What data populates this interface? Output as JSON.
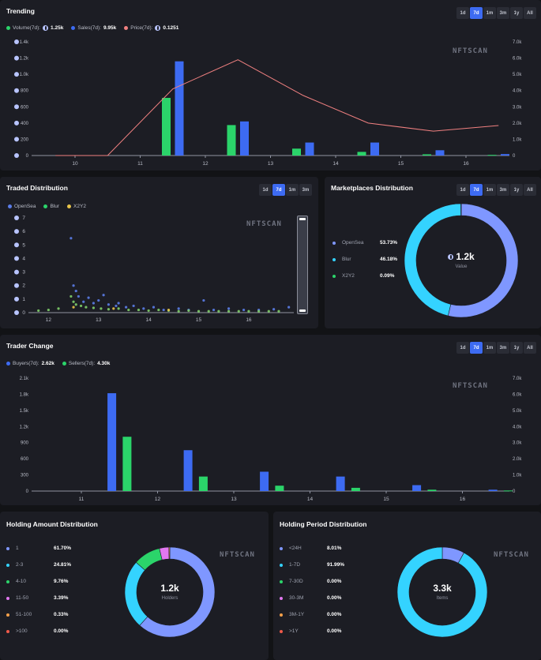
{
  "time_tabs": [
    "1d",
    "7d",
    "1m",
    "3m",
    "1y",
    "All"
  ],
  "time_tabs_short": [
    "1d",
    "7d",
    "1m",
    "3m"
  ],
  "watermark": "NFTSCAN",
  "trending": {
    "title": "Trending",
    "legend": [
      {
        "label": "Volume(7d):",
        "value": "1.25k",
        "color": "#2bd46a",
        "eth": true
      },
      {
        "label": "Sales(7d):",
        "value": "9.95k",
        "color": "#3d6bf2",
        "eth": false
      },
      {
        "label": "Price(7d):",
        "value": "0.1251",
        "color": "#f08080",
        "eth": true
      }
    ]
  },
  "traded": {
    "title": "Traded Distribution",
    "legend": [
      {
        "label": "OpenSea",
        "color": "#5b7de8"
      },
      {
        "label": "Blur",
        "color": "#2bd46a"
      },
      {
        "label": "X2Y2",
        "color": "#e8c44a"
      }
    ]
  },
  "marketplaces": {
    "title": "Marketplaces Distribution",
    "items": [
      {
        "label": "OpenSea",
        "pct": "53.73%",
        "color": "#7f97ff"
      },
      {
        "label": "Blur",
        "pct": "46.18%",
        "color": "#34d3ff"
      },
      {
        "label": "X2Y2",
        "pct": "0.09%",
        "color": "#2bd46a"
      }
    ],
    "center_value": "1.2k",
    "center_label": "Value"
  },
  "trader_change": {
    "title": "Trader Change",
    "legend": [
      {
        "label": "Buyers(7d):",
        "value": "2.62k",
        "color": "#3d6bf2"
      },
      {
        "label": "Sellers(7d):",
        "value": "4.30k",
        "color": "#2bd46a"
      }
    ]
  },
  "holding_amount": {
    "title": "Holding Amount Distribution",
    "items": [
      {
        "label": "1",
        "pct": "61.70%",
        "color": "#7f97ff"
      },
      {
        "label": "2-3",
        "pct": "24.81%",
        "color": "#34d3ff"
      },
      {
        "label": "4-10",
        "pct": "9.76%",
        "color": "#2bd46a"
      },
      {
        "label": "11-50",
        "pct": "3.39%",
        "color": "#e278f0"
      },
      {
        "label": "51-100",
        "pct": "0.33%",
        "color": "#f5a04a"
      },
      {
        "label": ">100",
        "pct": "0.00%",
        "color": "#f05a4a"
      }
    ],
    "center_value": "1.2k",
    "center_label": "Holders"
  },
  "holding_period": {
    "title": "Holding Period Distribution",
    "items": [
      {
        "label": "<24H",
        "pct": "8.01%",
        "color": "#7f97ff"
      },
      {
        "label": "1-7D",
        "pct": "91.99%",
        "color": "#34d3ff"
      },
      {
        "label": "7-30D",
        "pct": "0.00%",
        "color": "#2bd46a"
      },
      {
        "label": "30-3M",
        "pct": "0.00%",
        "color": "#e278f0"
      },
      {
        "label": "3M-1Y",
        "pct": "0.00%",
        "color": "#f5a04a"
      },
      {
        "label": ">1Y",
        "pct": "0.00%",
        "color": "#f05a4a"
      }
    ],
    "center_value": "3.3k",
    "center_label": "Items"
  },
  "chart_data": [
    {
      "type": "bar",
      "title": "Trending",
      "categories": [
        "10",
        "11",
        "12",
        "13",
        "14",
        "15",
        "16"
      ],
      "left_ticks": [
        "0",
        "200",
        "400",
        "600",
        "800",
        "1.0k",
        "1.2k",
        "1.4k"
      ],
      "right_ticks": [
        "0",
        "1.0k",
        "2.0k",
        "3.0k",
        "4.0k",
        "5.0k",
        "6.0k",
        "7.0k"
      ],
      "ylim": [
        0,
        1400
      ],
      "y2lim": [
        0,
        7000
      ],
      "series": [
        {
          "name": "Volume",
          "x": [
            11.4,
            12.4,
            13.4,
            14.4,
            15.4,
            16.4
          ],
          "values": [
            710,
            375,
            85,
            45,
            15,
            8
          ]
        },
        {
          "name": "Sales",
          "x": [
            11.6,
            12.6,
            13.6,
            14.6,
            15.6,
            16.6
          ],
          "values": [
            1160,
            420,
            160,
            160,
            65,
            18
          ]
        },
        {
          "name": "Price",
          "type": "line",
          "x": [
            9.7,
            10.5,
            11.5,
            12.5,
            13.5,
            14.5,
            15.5,
            16.5
          ],
          "values": [
            0,
            0,
            4100,
            5900,
            3700,
            2000,
            1500,
            1850
          ]
        }
      ]
    },
    {
      "type": "scatter",
      "title": "Traded Distribution",
      "x_ticks": [
        "12",
        "13",
        "14",
        "15",
        "16"
      ],
      "y_ticks": [
        "0",
        "1",
        "2",
        "3",
        "4",
        "5",
        "6",
        "7"
      ],
      "xlim": [
        11.6,
        16.9
      ],
      "ylim": [
        0,
        7
      ],
      "series": [
        {
          "name": "OpenSea",
          "points": [
            [
              12.45,
              5.5
            ],
            [
              12.5,
              2.0
            ],
            [
              12.55,
              1.6
            ],
            [
              12.6,
              1.2
            ],
            [
              12.7,
              0.8
            ],
            [
              12.8,
              1.1
            ],
            [
              12.9,
              0.7
            ],
            [
              13.0,
              0.9
            ],
            [
              13.1,
              1.3
            ],
            [
              13.2,
              0.6
            ],
            [
              13.35,
              0.5
            ],
            [
              13.4,
              0.7
            ],
            [
              13.55,
              0.4
            ],
            [
              13.7,
              0.5
            ],
            [
              13.9,
              0.3
            ],
            [
              14.1,
              0.4
            ],
            [
              14.3,
              0.2
            ],
            [
              14.6,
              0.3
            ],
            [
              14.8,
              0.2
            ],
            [
              15.1,
              0.9
            ],
            [
              15.3,
              0.2
            ],
            [
              15.6,
              0.3
            ],
            [
              15.9,
              0.2
            ],
            [
              16.2,
              0.2
            ],
            [
              16.5,
              0.25
            ],
            [
              16.8,
              0.4
            ]
          ]
        },
        {
          "name": "Blur",
          "points": [
            [
              11.8,
              0.15
            ],
            [
              12.0,
              0.2
            ],
            [
              12.2,
              0.3
            ],
            [
              12.45,
              1.2
            ],
            [
              12.5,
              0.8
            ],
            [
              12.55,
              0.6
            ],
            [
              12.65,
              0.5
            ],
            [
              12.75,
              0.4
            ],
            [
              12.9,
              0.35
            ],
            [
              13.05,
              0.3
            ],
            [
              13.2,
              0.25
            ],
            [
              13.4,
              0.3
            ],
            [
              13.6,
              0.2
            ],
            [
              13.8,
              0.2
            ],
            [
              14.0,
              0.15
            ],
            [
              14.2,
              0.2
            ],
            [
              14.4,
              0.15
            ],
            [
              14.6,
              0.1
            ],
            [
              14.8,
              0.15
            ],
            [
              15.0,
              0.1
            ],
            [
              15.2,
              0.1
            ],
            [
              15.4,
              0.1
            ],
            [
              15.6,
              0.1
            ],
            [
              15.8,
              0.1
            ],
            [
              16.0,
              0.1
            ],
            [
              16.2,
              0.1
            ],
            [
              16.4,
              0.1
            ],
            [
              16.6,
              0.1
            ]
          ]
        },
        {
          "name": "X2Y2",
          "points": [
            [
              12.5,
              0.4
            ],
            [
              13.3,
              0.3
            ],
            [
              14.4,
              0.2
            ]
          ]
        }
      ]
    },
    {
      "type": "pie",
      "title": "Marketplaces Distribution",
      "labels": [
        "OpenSea",
        "Blur",
        "X2Y2"
      ],
      "values": [
        53.73,
        46.18,
        0.09
      ]
    },
    {
      "type": "bar",
      "title": "Trader Change",
      "categories": [
        "11",
        "12",
        "13",
        "14",
        "15",
        "16"
      ],
      "left_ticks": [
        "0",
        "300",
        "600",
        "900",
        "1.2k",
        "1.5k",
        "1.8k",
        "2.1k"
      ],
      "right_ticks": [
        "0",
        "1.0k",
        "2.0k",
        "3.0k",
        "4.0k",
        "5.0k",
        "6.0k",
        "7.0k"
      ],
      "ylim": [
        0,
        2100
      ],
      "series": [
        {
          "name": "Buyers",
          "x": [
            11.4,
            12.4,
            13.4,
            14.4,
            15.4,
            16.4
          ],
          "values": [
            1820,
            760,
            360,
            270,
            110,
            25
          ]
        },
        {
          "name": "Sellers",
          "x": [
            11.6,
            12.6,
            13.6,
            14.6,
            15.6,
            16.6
          ],
          "values": [
            1010,
            270,
            100,
            60,
            25,
            10
          ]
        }
      ]
    },
    {
      "type": "pie",
      "title": "Holding Amount Distribution",
      "labels": [
        "1",
        "2-3",
        "4-10",
        "11-50",
        "51-100",
        ">100"
      ],
      "values": [
        61.7,
        24.81,
        9.76,
        3.39,
        0.33,
        0.0
      ]
    },
    {
      "type": "pie",
      "title": "Holding Period Distribution",
      "labels": [
        "<24H",
        "1-7D",
        "7-30D",
        "30-3M",
        "3M-1Y",
        ">1Y"
      ],
      "values": [
        8.01,
        91.99,
        0.0,
        0.0,
        0.0,
        0.0
      ]
    }
  ]
}
